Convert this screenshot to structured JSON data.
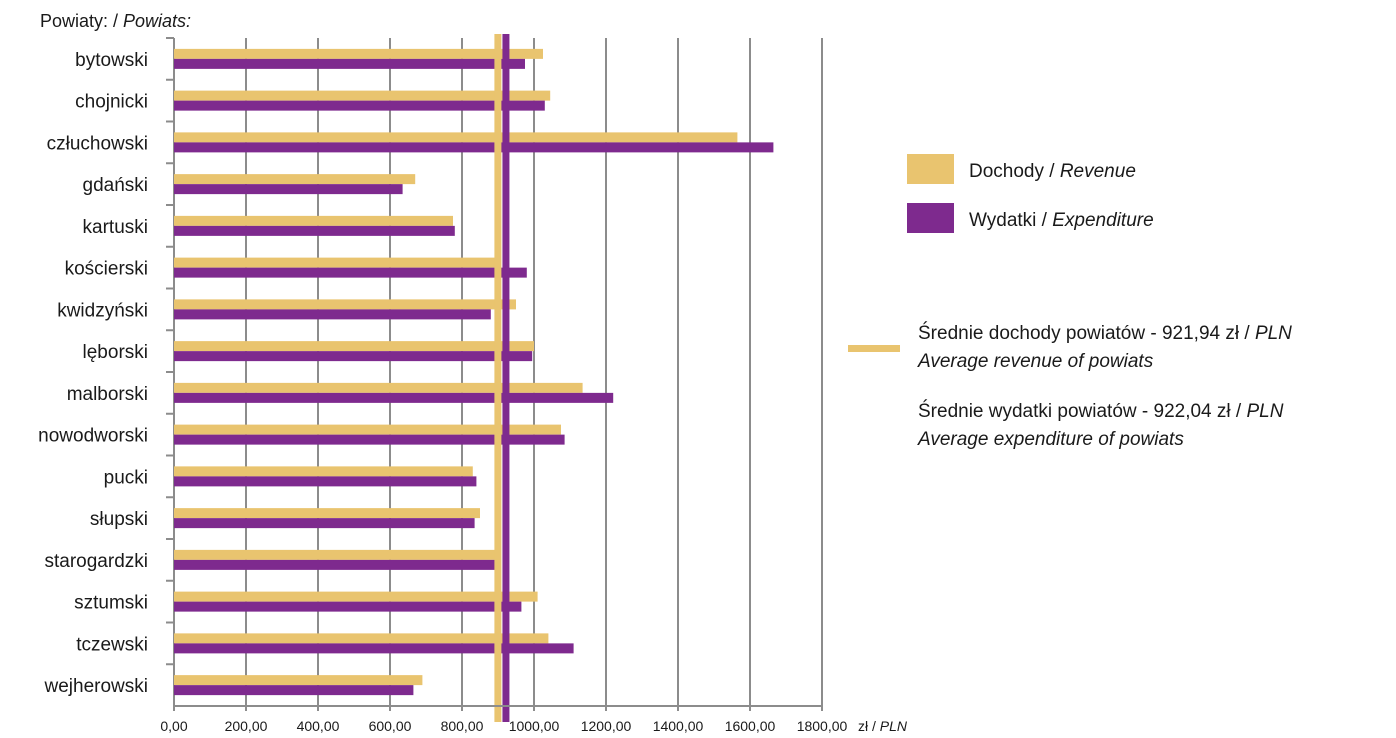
{
  "chart_data": {
    "type": "bar",
    "orientation": "horizontal",
    "ylabel_prefix": "Powiaty: / ",
    "ylabel_italic": "Powiats:",
    "x_unit_prefix": "zł / ",
    "x_unit_italic": "PLN",
    "xlim": [
      0,
      1800
    ],
    "x_ticks": [
      "0,00",
      "200,00",
      "400,00",
      "600,00",
      "800,00",
      "1000,00",
      "1200,00",
      "1400,00",
      "1600,00",
      "1800,00"
    ],
    "grid": "vertical",
    "categories": [
      "bytowski",
      "chojnicki",
      "człuchowski",
      "gdański",
      "kartuski",
      "kościerski",
      "kwidzyński",
      "lęborski",
      "malborski",
      "nowodworski",
      "pucki",
      "słupski",
      "starogardzki",
      "sztumski",
      "tczewski",
      "wejherowski"
    ],
    "series": [
      {
        "name_prefix": "Dochody / ",
        "name_italic": "Revenue",
        "color": "#E9C46F",
        "values": [
          1025,
          1045,
          1565,
          670,
          775,
          905,
          950,
          1000,
          1135,
          1075,
          830,
          850,
          905,
          1010,
          1040,
          690
        ]
      },
      {
        "name_prefix": "Wydatki / ",
        "name_italic": "Expenditure",
        "color": "#7E2A8E",
        "values": [
          975,
          1030,
          1665,
          635,
          780,
          980,
          880,
          995,
          1220,
          1085,
          840,
          835,
          900,
          965,
          1110,
          665
        ]
      }
    ],
    "reference_lines": [
      {
        "value": 921.94,
        "color": "#E9C46F",
        "label_prefix": "Średnie dochody powiatów - 921,94 zł / ",
        "label_prefix_italic": "PLN",
        "label_line2": "Average revenue of powiats"
      },
      {
        "value": 922.04,
        "color": "#7E2A8E",
        "label_prefix": "Średnie wydatki powiatów - 922,04 zł / ",
        "label_prefix_italic": "PLN",
        "label_line2": "Average expenditure of powiats"
      }
    ],
    "legend_position": "right"
  }
}
